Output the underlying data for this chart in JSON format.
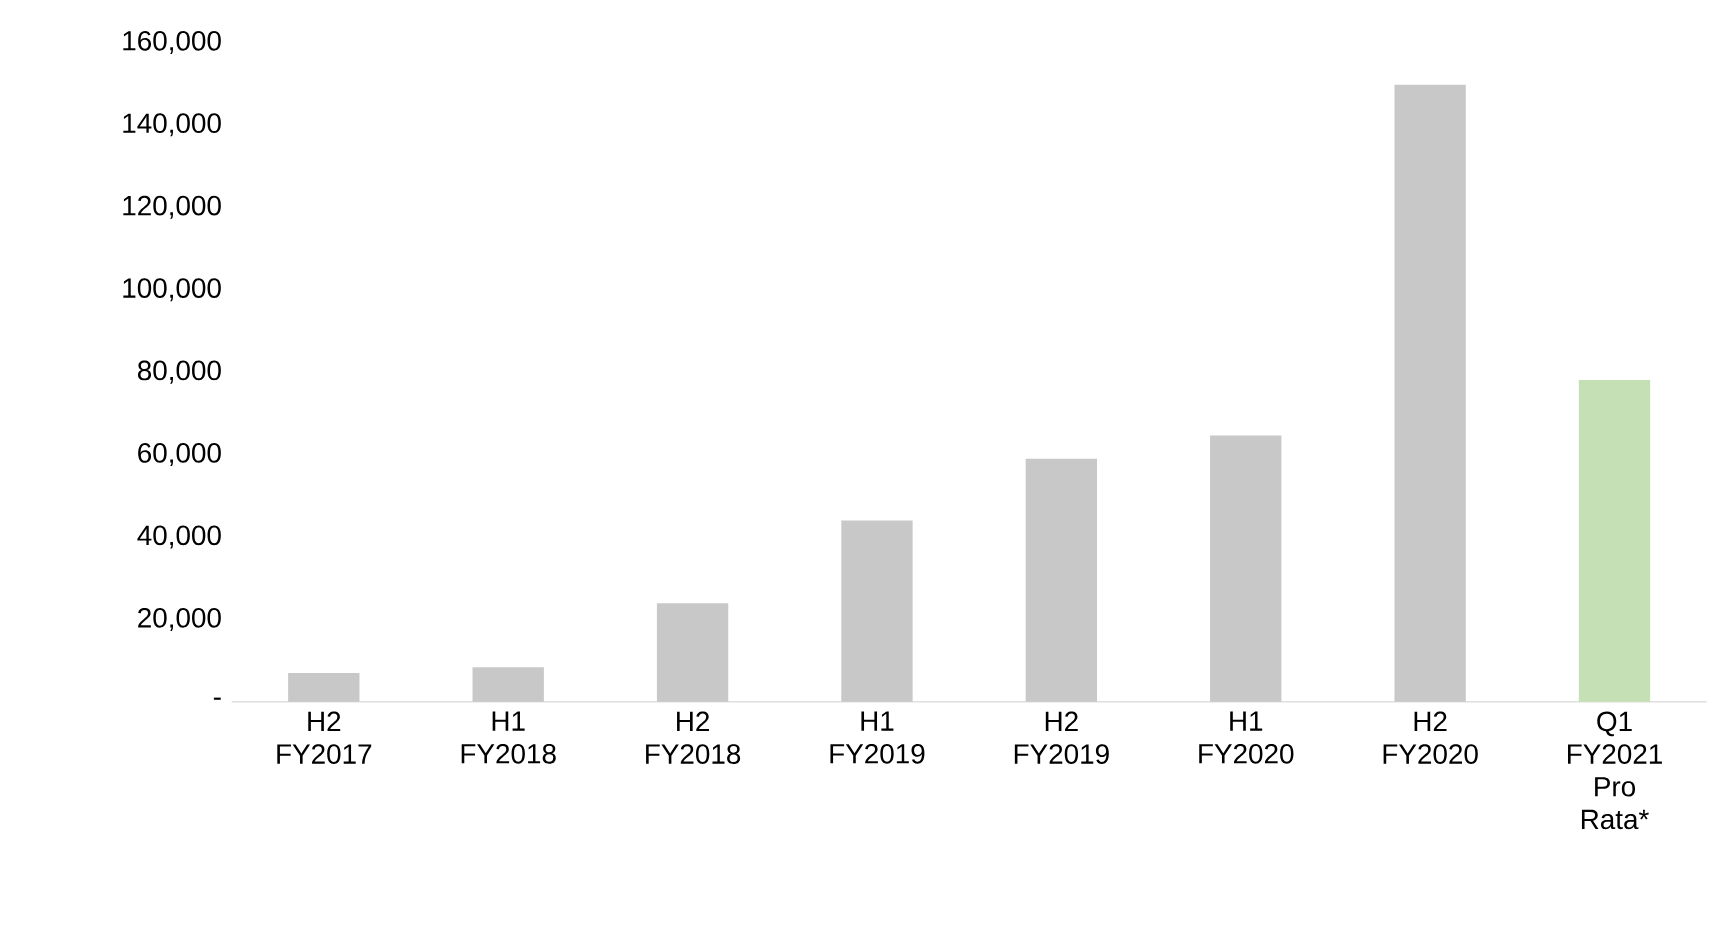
{
  "chart_data": {
    "type": "bar",
    "categories": [
      "H2 FY2017",
      "H1 FY2018",
      "H2 FY2018",
      "H1 FY2019",
      "H2 FY2019",
      "H1 FY2020",
      "H2 FY2020",
      "Q1 FY2021 Pro Rata*"
    ],
    "values": [
      7000,
      8400,
      23900,
      44000,
      59000,
      64600,
      149700,
      78100
    ],
    "colors": [
      "#c8c8c8",
      "#c8c8c8",
      "#c8c8c8",
      "#c8c8c8",
      "#c8c8c8",
      "#c8c8c8",
      "#c8c8c8",
      "#c5e0b4"
    ],
    "ylim": [
      0,
      160000
    ],
    "yticks": [
      {
        "value": 0,
        "label": "-"
      },
      {
        "value": 20000,
        "label": "20,000"
      },
      {
        "value": 40000,
        "label": "40,000"
      },
      {
        "value": 60000,
        "label": "60,000"
      },
      {
        "value": 80000,
        "label": "80,000"
      },
      {
        "value": 100000,
        "label": "100,000"
      },
      {
        "value": 120000,
        "label": "120,000"
      },
      {
        "value": 140000,
        "label": "140,000"
      },
      {
        "value": 160000,
        "label": "160,000"
      }
    ],
    "grid": false
  }
}
